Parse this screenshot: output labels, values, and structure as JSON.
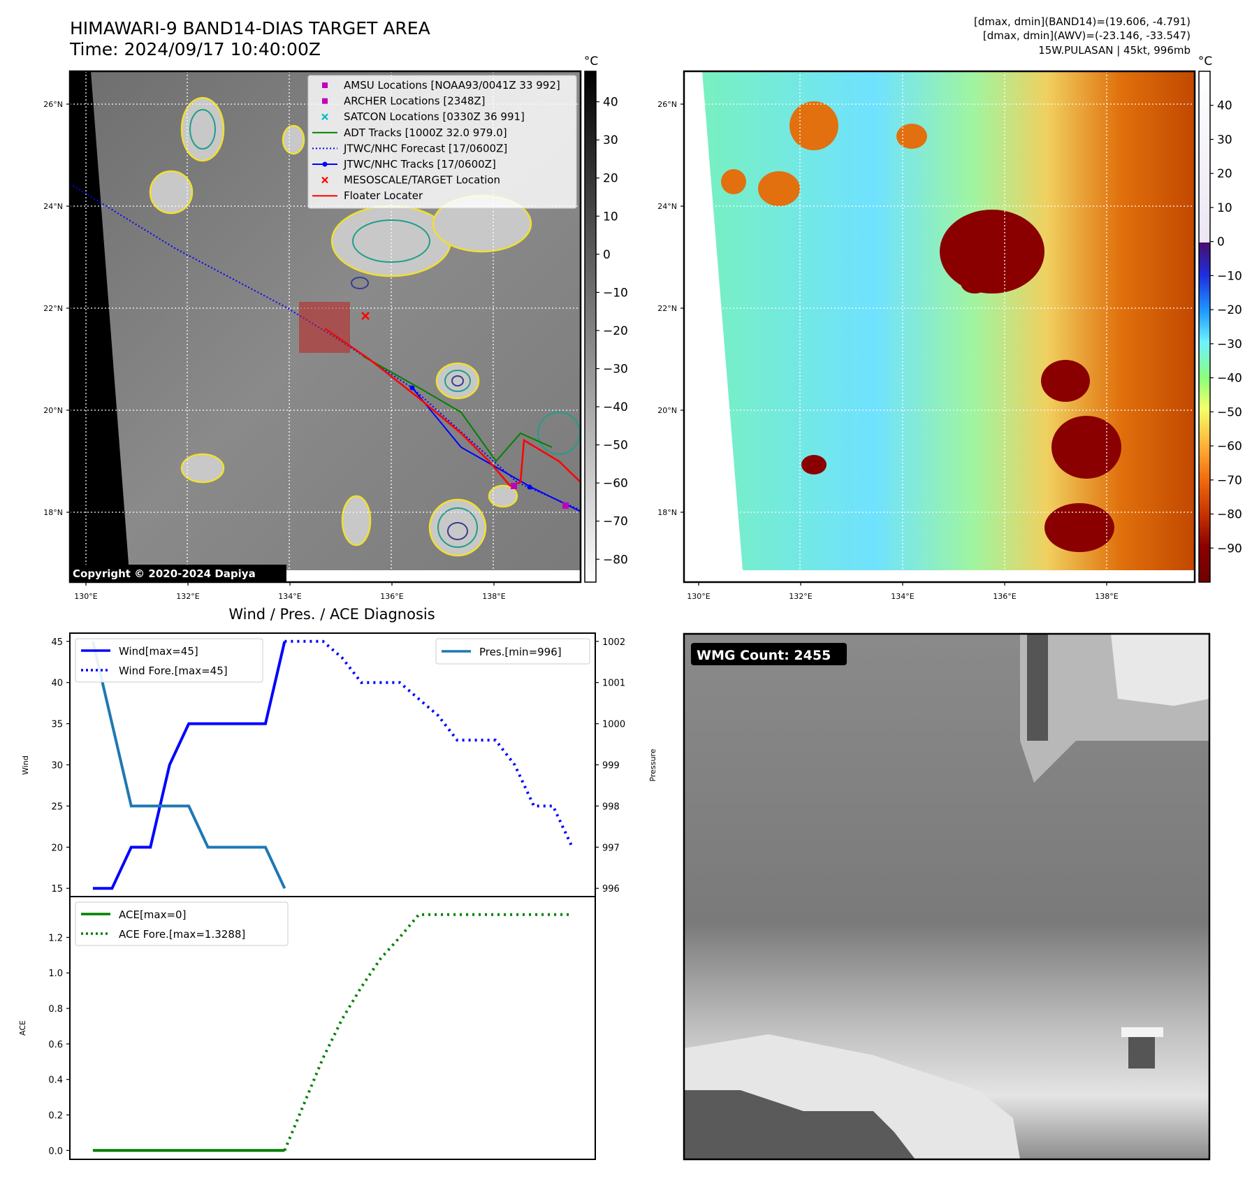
{
  "header": {
    "title_line1": "HIMAWARI-9 BAND14-DIAS TARGET AREA",
    "title_line2": "Time: 2024/09/17 10:40:00Z",
    "info_line1": "[dmax, dmin](BAND14)=(19.606, -4.791)",
    "info_line2": "[dmax, dmin](AWV)=(-23.146, -33.547)",
    "info_line3": "15W.PULASAN | 45kt, 996mb"
  },
  "map_panel": {
    "copyright": "Copyright © 2020-2024 Dapiya",
    "lon_ticks": [
      "130°E",
      "132°E",
      "134°E",
      "136°E",
      "138°E"
    ],
    "lat_ticks": [
      "26°N",
      "24°N",
      "22°N",
      "20°N",
      "18°N"
    ],
    "legend": [
      {
        "label": "AMSU Locations [NOAA93/0041Z 33 992]",
        "marker": "square",
        "color": "#bf00bf"
      },
      {
        "label": "ARCHER Locations [2348Z]",
        "marker": "square",
        "color": "#bf00bf"
      },
      {
        "label": "SATCON Locations [0330Z 36 991]",
        "marker": "x",
        "color": "#00bfbf"
      },
      {
        "label": "ADT Tracks [1000Z 32.0 979.0]",
        "marker": "line",
        "color": "#008000"
      },
      {
        "label": "JTWC/NHC Forecast [17/0600Z]",
        "marker": "dotted",
        "color": "#0000ff"
      },
      {
        "label": "JTWC/NHC Tracks [17/0600Z]",
        "marker": "line-dot",
        "color": "#0000ff"
      },
      {
        "label": "MESOSCALE/TARGET Location",
        "marker": "x",
        "color": "#ff0000"
      },
      {
        "label": "Floater Locater",
        "marker": "line",
        "color": "#ff0000"
      }
    ],
    "colorbar_unit": "°C",
    "colorbar_ticks": [
      "40",
      "30",
      "20",
      "10",
      "0",
      "−10",
      "−20",
      "−30",
      "−40",
      "−50",
      "−60",
      "−70",
      "−80"
    ],
    "colorbar_values": [
      40,
      30,
      20,
      10,
      0,
      -10,
      -20,
      -30,
      -40,
      -50,
      -60,
      -70,
      -80
    ],
    "colorbar_range": [
      48,
      -86
    ]
  },
  "wv_panel": {
    "lon_ticks": [
      "130°E",
      "132°E",
      "134°E",
      "136°E",
      "138°E"
    ],
    "lat_ticks": [
      "26°N",
      "24°N",
      "22°N",
      "20°N",
      "18°N"
    ],
    "colorbar_unit": "°C",
    "colorbar_ticks": [
      "40",
      "30",
      "20",
      "10",
      "0",
      "−10",
      "−20",
      "−30",
      "−40",
      "−50",
      "−60",
      "−70",
      "−80",
      "−90"
    ],
    "colorbar_values": [
      40,
      30,
      20,
      10,
      0,
      -10,
      -20,
      -30,
      -40,
      -50,
      -60,
      -70,
      -80,
      -90
    ],
    "colorbar_range": [
      50,
      -100
    ]
  },
  "wmg_panel": {
    "badge": "WMG Count: 2455"
  },
  "chart_data": [
    {
      "type": "line",
      "title": "Wind / Pres. / ACE Diagnosis",
      "ylabel": "Wind",
      "ylabel_right": "Pressure",
      "ylim": [
        14,
        46
      ],
      "ylim_right": [
        995.8,
        1002.2
      ],
      "x": [
        0,
        1,
        2,
        3,
        4,
        5,
        6,
        7,
        8,
        9,
        10,
        11,
        12,
        13,
        14,
        15,
        16,
        17,
        18,
        19,
        20,
        21,
        22,
        23,
        24,
        25
      ],
      "xlim": [
        -1.2,
        26.2
      ],
      "y_ticks": [
        15,
        20,
        25,
        30,
        35,
        40,
        45
      ],
      "y_ticks_right": [
        996,
        997,
        998,
        999,
        1000,
        1001,
        1002
      ],
      "series": [
        {
          "name": "Wind[max=45]",
          "axis": "left",
          "style": "solid",
          "color": "#0000ff",
          "x": [
            0,
            1,
            2,
            3,
            4,
            5,
            6,
            7,
            8,
            9,
            10
          ],
          "values": [
            15,
            15,
            20,
            20,
            30,
            35,
            35,
            35,
            35,
            35,
            45
          ]
        },
        {
          "name": "Wind Fore.[max=45]",
          "axis": "left",
          "style": "dotted",
          "color": "#0000ff",
          "x": [
            10,
            11,
            12,
            13,
            14,
            15,
            16,
            17,
            18,
            19,
            20,
            21,
            22,
            23,
            24,
            25
          ],
          "values": [
            45,
            45,
            45,
            43,
            40,
            40,
            40,
            38,
            36,
            33,
            33,
            33,
            30,
            25,
            25,
            20
          ]
        },
        {
          "name": "Pres.[min=996]",
          "axis": "right",
          "style": "solid",
          "color": "#1f77b4",
          "x": [
            0,
            1,
            2,
            3,
            4,
            5,
            6,
            7,
            8,
            9,
            10
          ],
          "values": [
            1002,
            1000,
            998,
            998,
            998,
            998,
            997,
            997,
            997,
            997,
            996
          ]
        }
      ]
    },
    {
      "type": "line",
      "ylabel": "ACE",
      "ylim": [
        -0.05,
        1.43
      ],
      "xlim": [
        -1.2,
        26.2
      ],
      "y_ticks": [
        0.0,
        0.2,
        0.4,
        0.6,
        0.8,
        1.0,
        1.2
      ],
      "y_tick_labels": [
        "0.0",
        "0.2",
        "0.4",
        "0.6",
        "0.8",
        "1.0",
        "1.2"
      ],
      "series": [
        {
          "name": "ACE[max=0]",
          "style": "solid",
          "color": "#008000",
          "x": [
            0,
            1,
            2,
            3,
            4,
            5,
            6,
            7,
            8,
            9,
            10
          ],
          "values": [
            0,
            0,
            0,
            0,
            0,
            0,
            0,
            0,
            0,
            0,
            0
          ]
        },
        {
          "name": "ACE Fore.[max=1.3288]",
          "style": "dotted",
          "color": "#008000",
          "x": [
            10,
            11,
            12,
            13,
            14,
            15,
            16,
            17,
            18,
            19,
            20,
            21,
            22,
            23,
            24,
            25
          ],
          "values": [
            0,
            0.26,
            0.52,
            0.74,
            0.92,
            1.08,
            1.2,
            1.3288,
            1.3288,
            1.3288,
            1.3288,
            1.3288,
            1.3288,
            1.3288,
            1.3288,
            1.3288
          ]
        }
      ]
    }
  ]
}
